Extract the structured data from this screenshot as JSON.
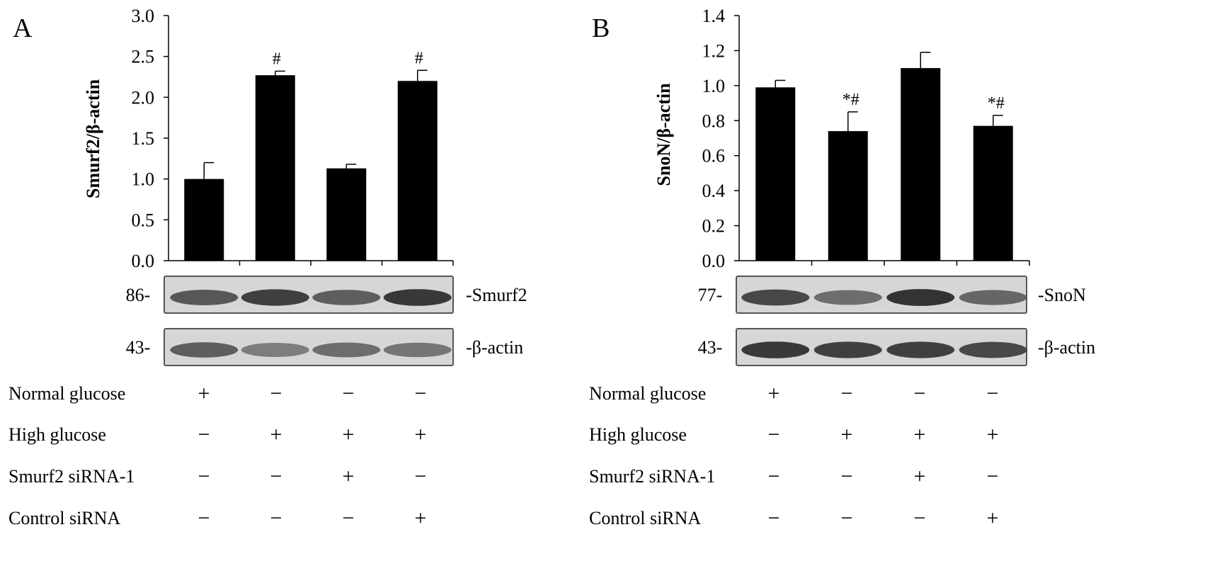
{
  "chart_data": [
    {
      "type": "bar",
      "panel_label": "A",
      "ylabel": "Smurf2/β-actin",
      "ylim": [
        0,
        3.0
      ],
      "yticks": [
        "0.0",
        "0.5",
        "1.0",
        "1.5",
        "2.0",
        "2.5",
        "3.0"
      ],
      "ytick_values": [
        0,
        0.5,
        1.0,
        1.5,
        2.0,
        2.5,
        3.0
      ],
      "values": [
        1.0,
        2.27,
        1.13,
        2.2
      ],
      "errors": [
        0.2,
        0.05,
        0.05,
        0.13
      ],
      "annotations": [
        "",
        "#",
        "",
        "#"
      ],
      "grid": false,
      "blots": [
        {
          "marker": "86-",
          "label": "-Smurf2",
          "intensity": [
            0.75,
            0.9,
            0.7,
            0.95
          ]
        },
        {
          "marker": "43-",
          "label": "-β-actin",
          "intensity": [
            0.7,
            0.5,
            0.6,
            0.55
          ]
        }
      ],
      "conditions": [
        {
          "label": "Normal glucose",
          "signs": [
            "+",
            "−",
            "−",
            "−"
          ]
        },
        {
          "label": "High glucose",
          "signs": [
            "−",
            "+",
            "+",
            "+"
          ]
        },
        {
          "label": "Smurf2 siRNA-1",
          "signs": [
            "−",
            "−",
            "+",
            "−"
          ]
        },
        {
          "label": "Control siRNA",
          "signs": [
            "−",
            "−",
            "−",
            "+"
          ]
        }
      ]
    },
    {
      "type": "bar",
      "panel_label": "B",
      "ylabel": "SnoN/β-actin",
      "ylim": [
        0,
        1.4
      ],
      "yticks": [
        "0.0",
        "0.2",
        "0.4",
        "0.6",
        "0.8",
        "1.0",
        "1.2",
        "1.4"
      ],
      "ytick_values": [
        0,
        0.2,
        0.4,
        0.6,
        0.8,
        1.0,
        1.2,
        1.4
      ],
      "values": [
        0.99,
        0.74,
        1.1,
        0.77
      ],
      "errors": [
        0.04,
        0.11,
        0.09,
        0.06
      ],
      "annotations": [
        "",
        "*#",
        "",
        "*#"
      ],
      "grid": false,
      "blots": [
        {
          "marker": "77-",
          "label": "-SnoN",
          "intensity": [
            0.85,
            0.6,
            0.98,
            0.65
          ]
        },
        {
          "marker": "43-",
          "label": "-β-actin",
          "intensity": [
            0.95,
            0.9,
            0.9,
            0.85
          ]
        }
      ],
      "conditions": [
        {
          "label": "Normal glucose",
          "signs": [
            "+",
            "−",
            "−",
            "−"
          ]
        },
        {
          "label": "High glucose",
          "signs": [
            "−",
            "+",
            "+",
            "+"
          ]
        },
        {
          "label": "Smurf2 siRNA-1",
          "signs": [
            "−",
            "−",
            "+",
            "−"
          ]
        },
        {
          "label": "Control siRNA",
          "signs": [
            "−",
            "−",
            "−",
            "+"
          ]
        }
      ]
    }
  ]
}
